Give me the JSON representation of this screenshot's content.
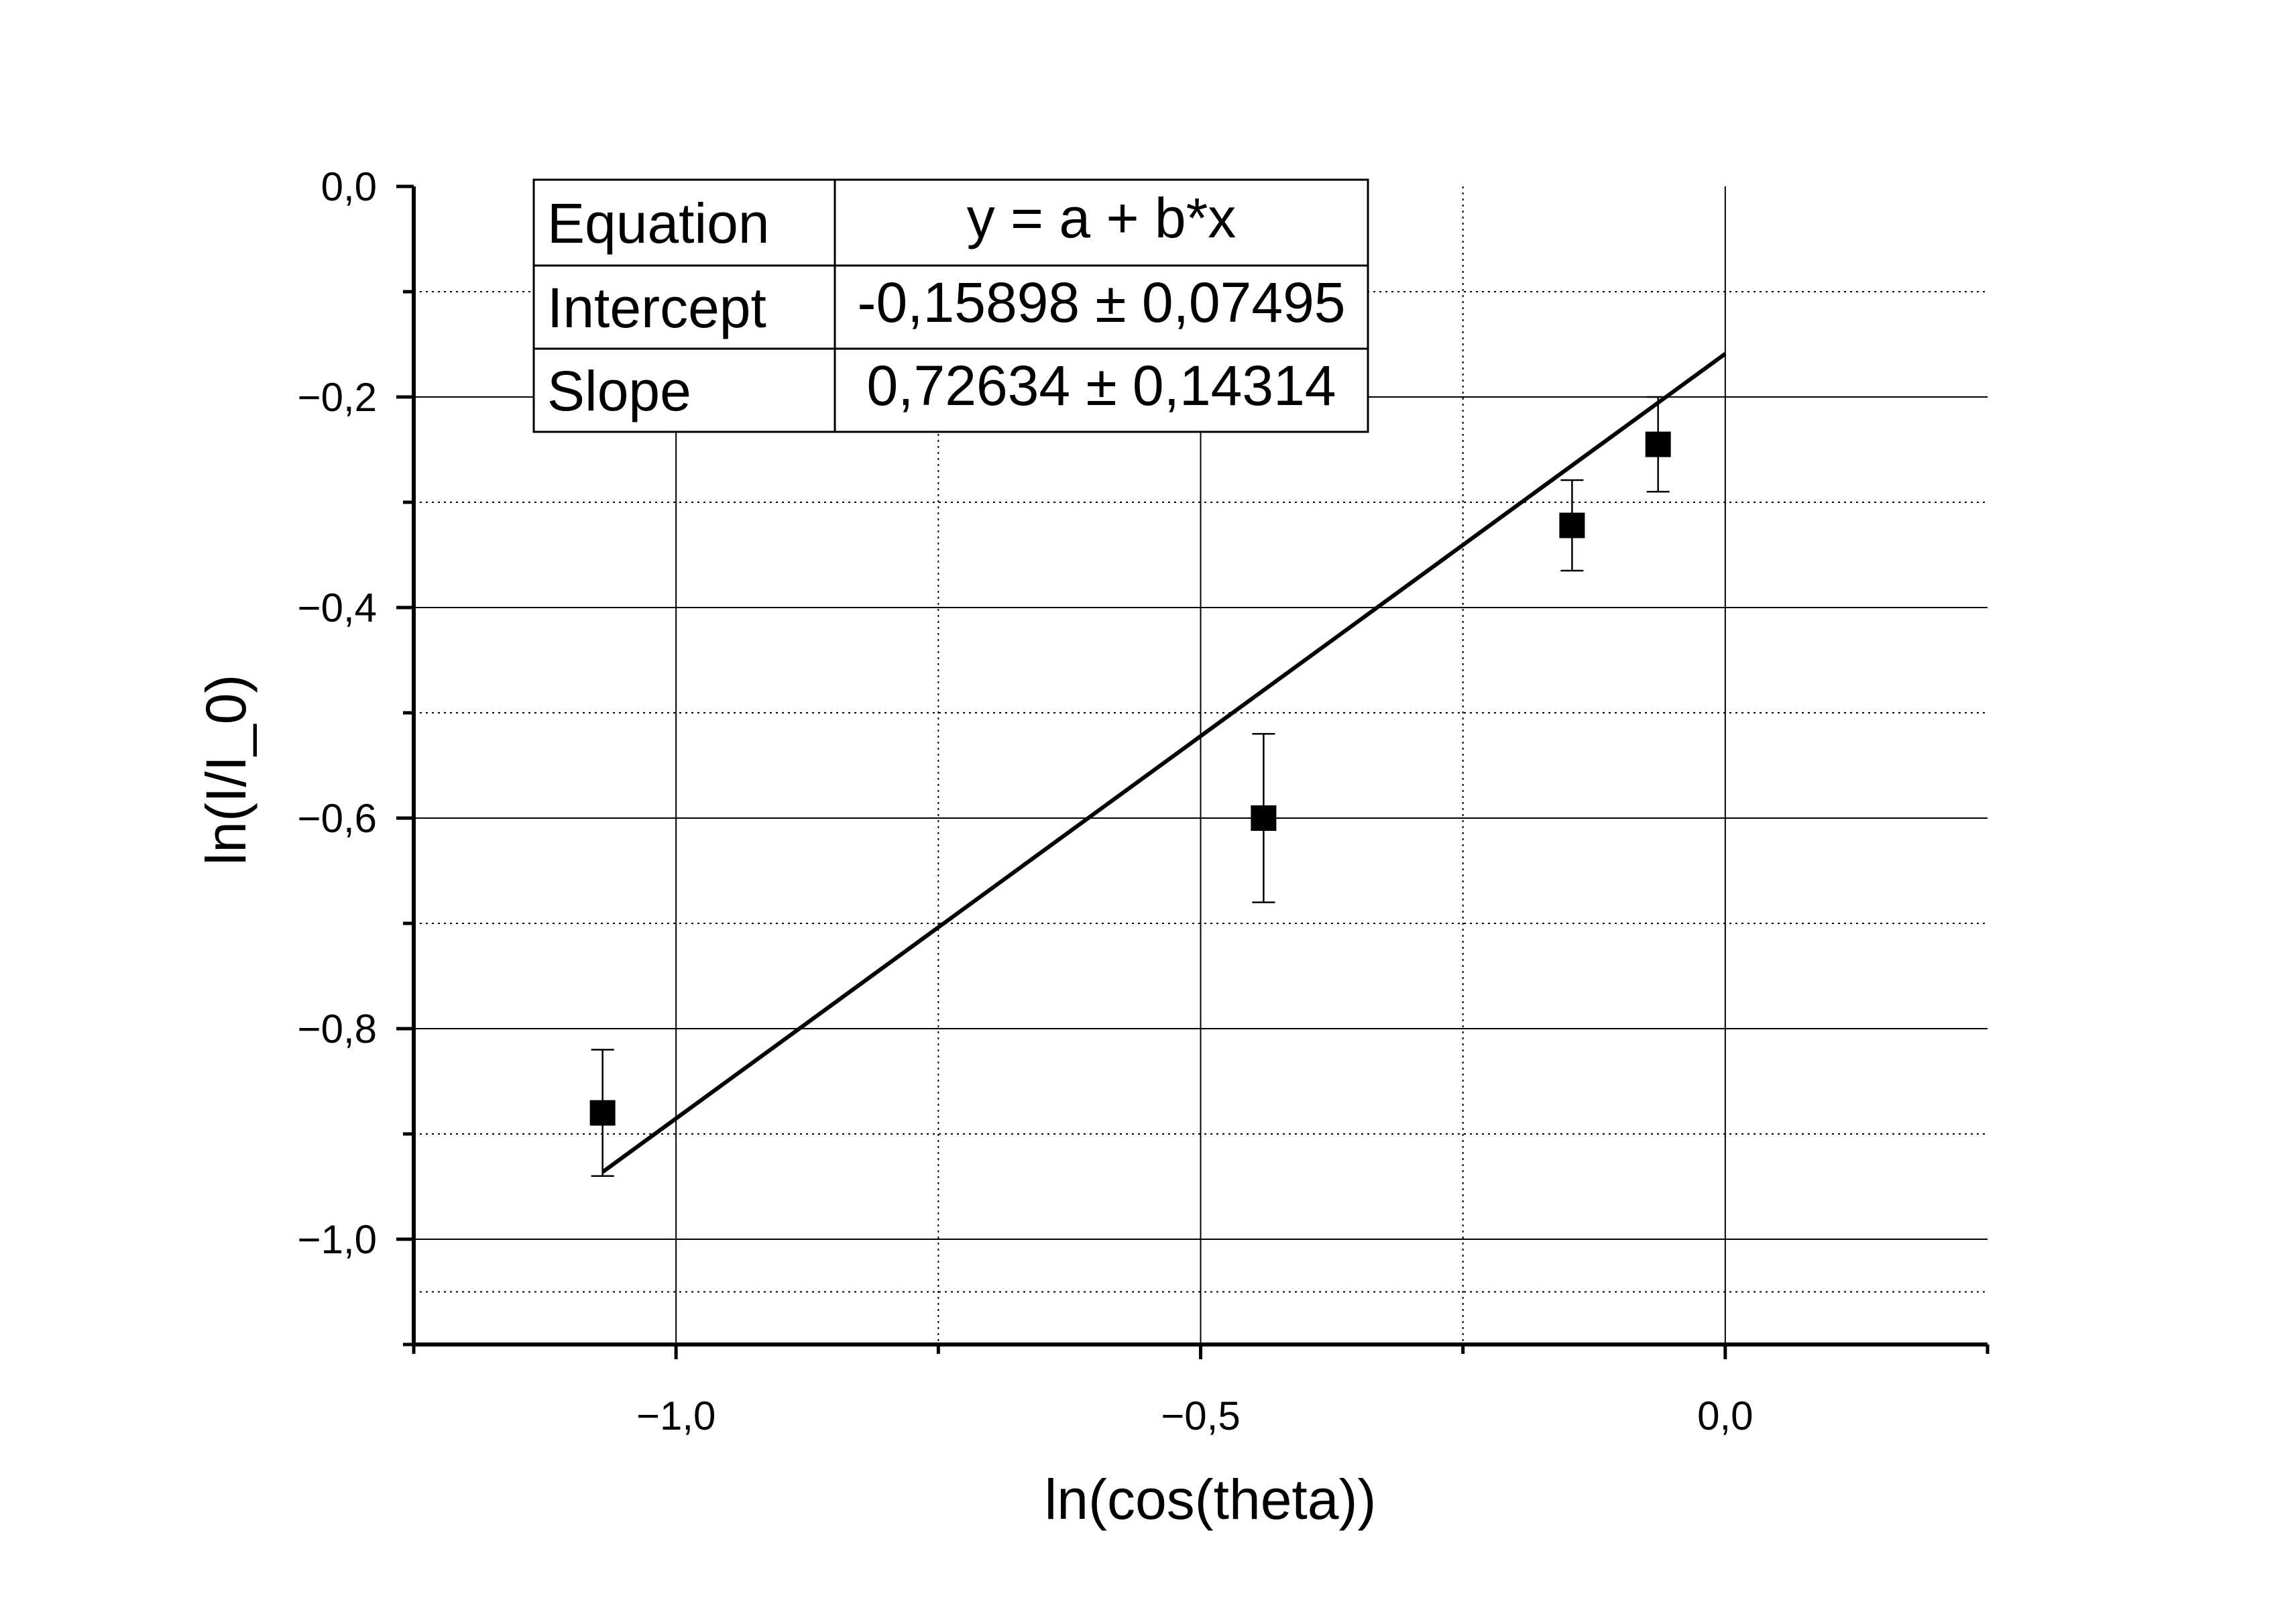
{
  "chart_data": {
    "type": "scatter",
    "xlabel": "ln(cos(theta))",
    "ylabel": "ln(I/I_0)",
    "xlim": [
      -1.25,
      0.25
    ],
    "ylim": [
      -1.1,
      0.0
    ],
    "x_ticks": [
      {
        "value": -1.0,
        "label": "−1,0"
      },
      {
        "value": -0.5,
        "label": "−0,5"
      },
      {
        "value": 0.0,
        "label": "0,0"
      }
    ],
    "y_ticks": [
      {
        "value": 0.0,
        "label": "0,0"
      },
      {
        "value": -0.2,
        "label": "−0,2"
      },
      {
        "value": -0.4,
        "label": "−0,4"
      },
      {
        "value": -0.6,
        "label": "−0,6"
      },
      {
        "value": -0.8,
        "label": "−0,8"
      },
      {
        "value": -1.0,
        "label": "−1,0"
      }
    ],
    "grid": true,
    "points": [
      {
        "x": -1.07,
        "y": -0.88,
        "yerr": 0.06
      },
      {
        "x": -0.44,
        "y": -0.6,
        "yerr": 0.08
      },
      {
        "x": -0.146,
        "y": -0.322,
        "yerr": 0.043
      },
      {
        "x": -0.064,
        "y": -0.245,
        "yerr": 0.045
      }
    ],
    "fit": {
      "intercept": -0.15898,
      "slope": 0.72634,
      "x_range": [
        -1.07,
        0.0
      ]
    },
    "fit_table": [
      {
        "name": "Equation",
        "value": "y = a + b*x"
      },
      {
        "name": "Intercept",
        "value": "-0,15898 ± 0,07495"
      },
      {
        "name": "Slope",
        "value": "0,72634 ± 0,14314"
      }
    ],
    "colors": {
      "marker": "#000000",
      "line": "#000000",
      "grid": "#000000"
    }
  }
}
